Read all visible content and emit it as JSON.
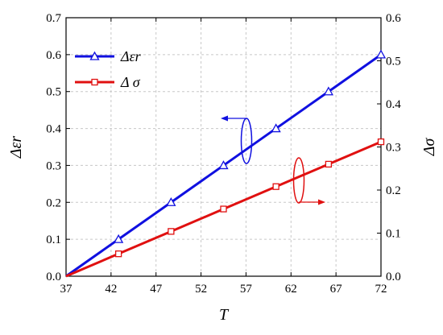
{
  "chart_data": {
    "type": "line",
    "xlabel": "T",
    "ylabel_left": "Δεr",
    "ylabel_right": "Δσ",
    "x_ticks": [
      "37",
      "42",
      "47",
      "52",
      "57",
      "62",
      "67",
      "72"
    ],
    "y_left_ticks": [
      "0.0",
      "0.1",
      "0.2",
      "0.3",
      "0.4",
      "0.5",
      "0.6",
      "0.7"
    ],
    "y_right_ticks": [
      "0.0",
      "0.1",
      "0.2",
      "0.3",
      "0.4",
      "0.5",
      "0.6"
    ],
    "xlim": [
      37,
      72
    ],
    "ylim_left": [
      0,
      0.7
    ],
    "ylim_right": [
      0,
      0.6
    ],
    "grid": true,
    "legend_position": "top-left",
    "series": [
      {
        "name": "Δεr",
        "axis": "left",
        "color": "#1010e0",
        "marker": "triangle",
        "x": [
          37,
          42.83,
          48.67,
          54.5,
          60.33,
          66.17,
          72
        ],
        "values": [
          0.0,
          0.1,
          0.2,
          0.3,
          0.4,
          0.5,
          0.6
        ]
      },
      {
        "name": "Δ σ",
        "axis": "right",
        "color": "#e01010",
        "marker": "square",
        "x": [
          37,
          42.83,
          48.67,
          54.5,
          60.33,
          66.17,
          72
        ],
        "values": [
          0.0,
          0.052,
          0.104,
          0.156,
          0.208,
          0.26,
          0.312
        ]
      }
    ]
  }
}
